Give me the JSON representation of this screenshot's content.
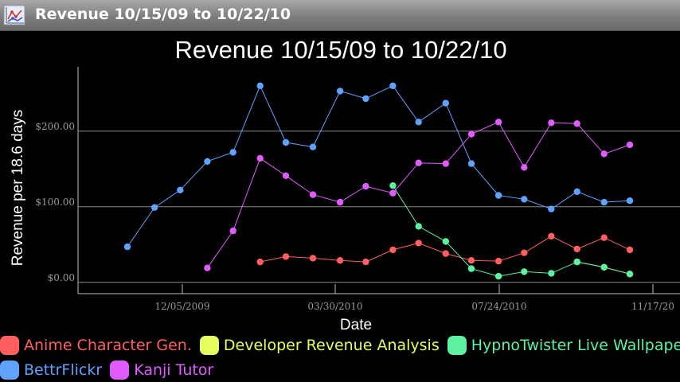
{
  "window": {
    "title": "Revenue 10/15/09 to 10/22/10",
    "icon": "line-chart-icon"
  },
  "chart_data": {
    "type": "line",
    "title": "Revenue 10/15/09 to 10/22/10",
    "xlabel": "Date",
    "ylabel": "Revenue per 18.6 days",
    "x_ticks": [
      "12/05/2009",
      "03/30/2010",
      "07/24/2010",
      "11/17/20"
    ],
    "y_ticks": [
      {
        "value": 0,
        "label": "$0.00"
      },
      {
        "value": 100,
        "label": "$100.00"
      },
      {
        "value": 200,
        "label": "$200.00"
      }
    ],
    "ylim": [
      -15,
      285
    ],
    "grid": "horizontal",
    "legend_position": "bottom",
    "x": [
      "10/22/2009",
      "11/10/2009",
      "11/28/2009",
      "12/17/2009",
      "01/04/2010",
      "01/23/2010",
      "02/10/2010",
      "03/01/2010",
      "03/20/2010",
      "04/07/2010",
      "04/26/2010",
      "05/14/2010",
      "06/02/2010",
      "06/20/2010",
      "07/09/2010",
      "07/27/2010",
      "08/15/2010",
      "09/02/2010",
      "09/21/2010",
      "10/09/2010"
    ],
    "series": [
      {
        "name": "Anime Character Gen.",
        "color": "#ff5f5f",
        "values": [
          null,
          null,
          null,
          null,
          null,
          27,
          34,
          32,
          29,
          27,
          43,
          52,
          38,
          29,
          28,
          39,
          61,
          44,
          59,
          43
        ]
      },
      {
        "name": "Developer Revenue Analysis",
        "color": "#e6ff5c",
        "values": [
          null,
          null,
          null,
          null,
          null,
          null,
          null,
          null,
          null,
          null,
          null,
          null,
          null,
          null,
          null,
          null,
          null,
          27,
          20,
          11
        ]
      },
      {
        "name": "HypnoTwister Live Wallpaper",
        "color": "#5cf2a0",
        "values": [
          null,
          null,
          null,
          null,
          null,
          null,
          null,
          null,
          null,
          null,
          128,
          74,
          54,
          18,
          8,
          14,
          12,
          27,
          20,
          11
        ]
      },
      {
        "name": "BettrFlickr",
        "color": "#5fa2ff",
        "values": [
          47,
          99,
          122,
          160,
          172,
          260,
          185,
          179,
          253,
          243,
          260,
          212,
          237,
          157,
          115,
          110,
          97,
          120,
          106,
          108
        ]
      },
      {
        "name": "Kanji Tutor",
        "color": "#e05cff",
        "values": [
          null,
          null,
          null,
          19,
          68,
          164,
          141,
          116,
          106,
          127,
          118,
          158,
          157,
          196,
          212,
          152,
          211,
          210,
          170,
          182
        ]
      }
    ]
  }
}
